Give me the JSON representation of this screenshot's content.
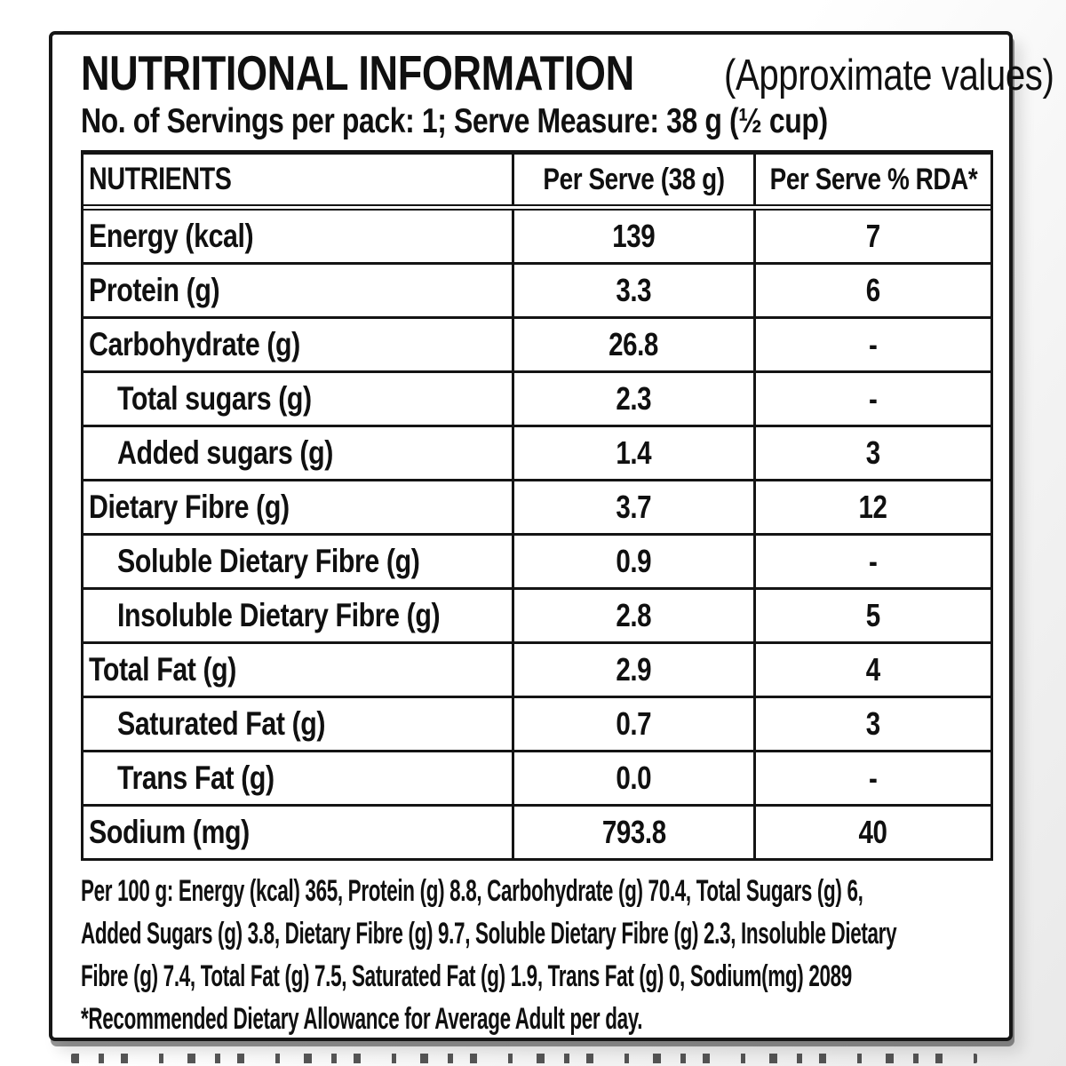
{
  "label": {
    "title": "NUTRITIONAL INFORMATION",
    "title_note": "(Approximate values)",
    "servings": "No. of Servings per pack: 1; Serve Measure: 38 g (½ cup)",
    "table": {
      "headers": {
        "nutrients": "NUTRIENTS",
        "per_serve": "Per Serve (38 g)",
        "per_serve_rda": "Per Serve % RDA*"
      },
      "rows": [
        {
          "nutrient": "Energy (kcal)",
          "per_serve": "139",
          "rda_pct": "7"
        },
        {
          "nutrient": "Protein (g)",
          "per_serve": "3.3",
          "rda_pct": "6"
        },
        {
          "nutrient": "Carbohydrate (g)",
          "per_serve": "26.8",
          "rda_pct": "-"
        },
        {
          "nutrient": "Total sugars (g)",
          "per_serve": "2.3",
          "rda_pct": "-"
        },
        {
          "nutrient": "Added sugars (g)",
          "per_serve": "1.4",
          "rda_pct": "3"
        },
        {
          "nutrient": "Dietary Fibre (g)",
          "per_serve": "3.7",
          "rda_pct": "12"
        },
        {
          "nutrient": "Soluble Dietary Fibre (g)",
          "per_serve": "0.9",
          "rda_pct": "-"
        },
        {
          "nutrient": "Insoluble Dietary Fibre (g)",
          "per_serve": "2.8",
          "rda_pct": "5"
        },
        {
          "nutrient": "Total Fat (g)",
          "per_serve": "2.9",
          "rda_pct": "4"
        },
        {
          "nutrient": "Saturated Fat (g)",
          "per_serve": "0.7",
          "rda_pct": "3"
        },
        {
          "nutrient": "Trans Fat (g)",
          "per_serve": "0.0",
          "rda_pct": "-"
        },
        {
          "nutrient": "Sodium (mg)",
          "per_serve": "793.8",
          "rda_pct": "40"
        }
      ]
    },
    "per_100g_lines": [
      "Per 100 g: Energy (kcal) 365, Protein (g) 8.8, Carbohydrate (g) 70.4, Total Sugars (g) 6,",
      "Added Sugars (g) 3.8, Dietary Fibre (g) 9.7, Soluble Dietary Fibre (g) 2.3, Insoluble Dietary",
      "Fibre (g) 7.4, Total Fat (g) 7.5, Saturated Fat (g) 1.9, Trans Fat (g) 0, Sodium(mg) 2089",
      "*Recommended Dietary Allowance for Average Adult per day."
    ],
    "colors": {
      "text": "#101010",
      "border": "#141414",
      "panel": "#ffffff"
    }
  }
}
